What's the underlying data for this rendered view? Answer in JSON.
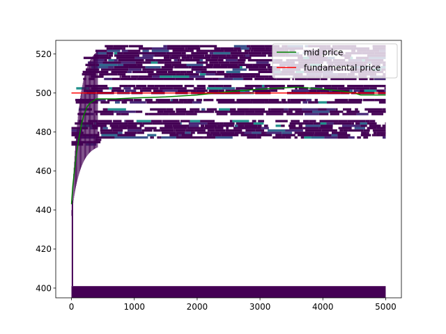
{
  "chart_data": {
    "type": "heatmap",
    "title": "",
    "xlabel": "",
    "ylabel": "",
    "xlim": [
      -250,
      5250
    ],
    "ylim": [
      395,
      527
    ],
    "x_ticks": [
      0,
      1000,
      2000,
      3000,
      4000,
      5000
    ],
    "y_ticks": [
      400,
      420,
      440,
      460,
      480,
      500,
      520
    ],
    "grid": false,
    "legend_position": "top-right",
    "colormap": "viridis",
    "background_band": {
      "y_min": 395,
      "y_max": 401,
      "x_min": 0,
      "x_max": 5000
    },
    "series": [
      {
        "name": "mid price",
        "type": "line",
        "color": "#008000",
        "x": [
          0,
          20,
          50,
          80,
          120,
          160,
          200,
          250,
          300,
          350,
          400,
          500,
          700,
          1000,
          1500,
          2000,
          2300,
          2600,
          3000,
          3300,
          3600,
          4000,
          4300,
          4500,
          4600,
          4700,
          5000
        ],
        "y": [
          443,
          452,
          461,
          469,
          477,
          484,
          489,
          493,
          495,
          496,
          497,
          497,
          497,
          497.5,
          498,
          499,
          500,
          501,
          502,
          502.5,
          503,
          502,
          501,
          500,
          499,
          499,
          499
        ]
      },
      {
        "name": "fundamental price",
        "type": "line",
        "color": "#ff0000",
        "x": [
          0,
          5000
        ],
        "y": [
          500,
          500
        ]
      }
    ],
    "heatmap_extent": {
      "x_min": 0,
      "x_max": 5000,
      "y_min": 473,
      "y_max": 527
    }
  },
  "legend": {
    "items": [
      {
        "label": "mid price",
        "color": "#008000"
      },
      {
        "label": "fundamental price",
        "color": "#ff0000"
      }
    ]
  }
}
